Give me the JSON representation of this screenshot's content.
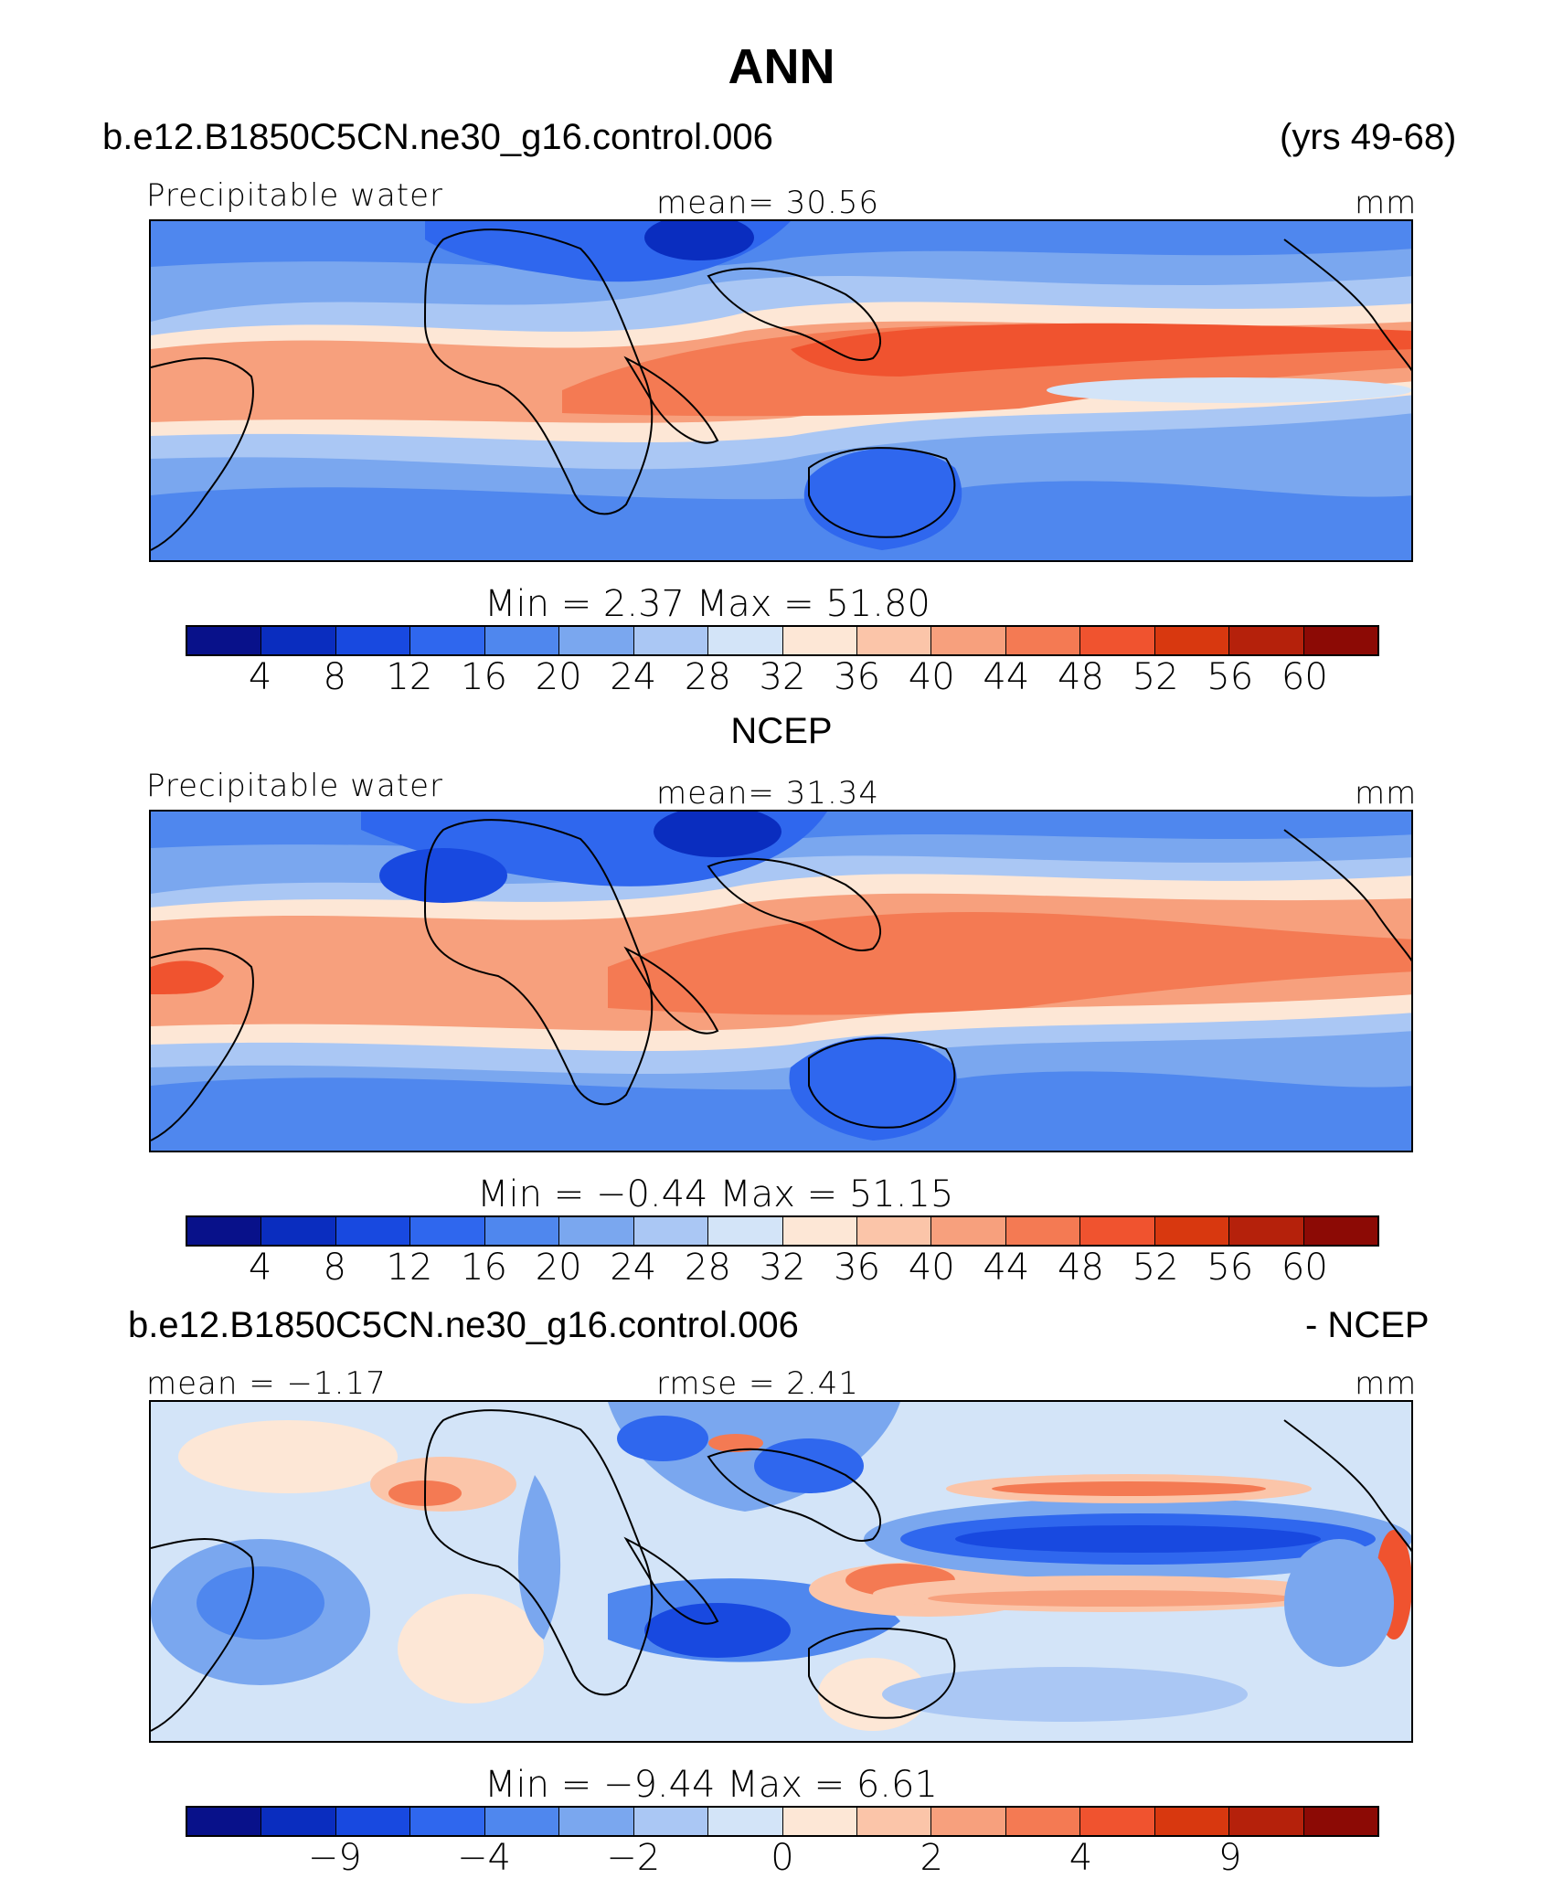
{
  "header": {
    "title": "ANN",
    "case_name": "b.e12.B1850C5CN.ne30_g16.control.006",
    "years": "(yrs 49-68)"
  },
  "panel1": {
    "variable": "Precipitable water",
    "mean_text": "mean=   30.56",
    "units": "mm",
    "minmax_text": "Min  =      2.37  Max  =    51.80",
    "ticks": [
      "4",
      "8",
      "12",
      "16",
      "20",
      "24",
      "28",
      "32",
      "36",
      "40",
      "44",
      "48",
      "52",
      "56",
      "60"
    ]
  },
  "panel2": {
    "title": "NCEP",
    "variable": "Precipitable water",
    "mean_text": "mean=   31.34",
    "units": "mm",
    "minmax_text": "Min  =    −0.44  Max  =    51.15",
    "ticks": [
      "4",
      "8",
      "12",
      "16",
      "20",
      "24",
      "28",
      "32",
      "36",
      "40",
      "44",
      "48",
      "52",
      "56",
      "60"
    ]
  },
  "panel3": {
    "case_name": "b.e12.B1850C5CN.ne30_g16.control.006",
    "diff_label": "- NCEP",
    "mean_text": "mean =   −1.17",
    "rmse_text": "rmse  =     2.41",
    "units": "mm",
    "minmax_text": "Min  =    −9.44  Max  =     6.61",
    "ticks": [
      "−9",
      "",
      "−4",
      "",
      "−2",
      "",
      "0",
      "",
      "2",
      "",
      "4",
      "",
      "9"
    ]
  },
  "colors": {
    "palette": [
      "#08118a",
      "#0a2dbf",
      "#1849e0",
      "#2f67ee",
      "#4f87ee",
      "#7aa7ef",
      "#aac7f4",
      "#d3e4f8",
      "#fde7d6",
      "#fbc5a9",
      "#f7a07d",
      "#f47a53",
      "#f0532f",
      "#d8380f",
      "#b5210b",
      "#8c0a05"
    ],
    "land_outline": "#000000"
  }
}
